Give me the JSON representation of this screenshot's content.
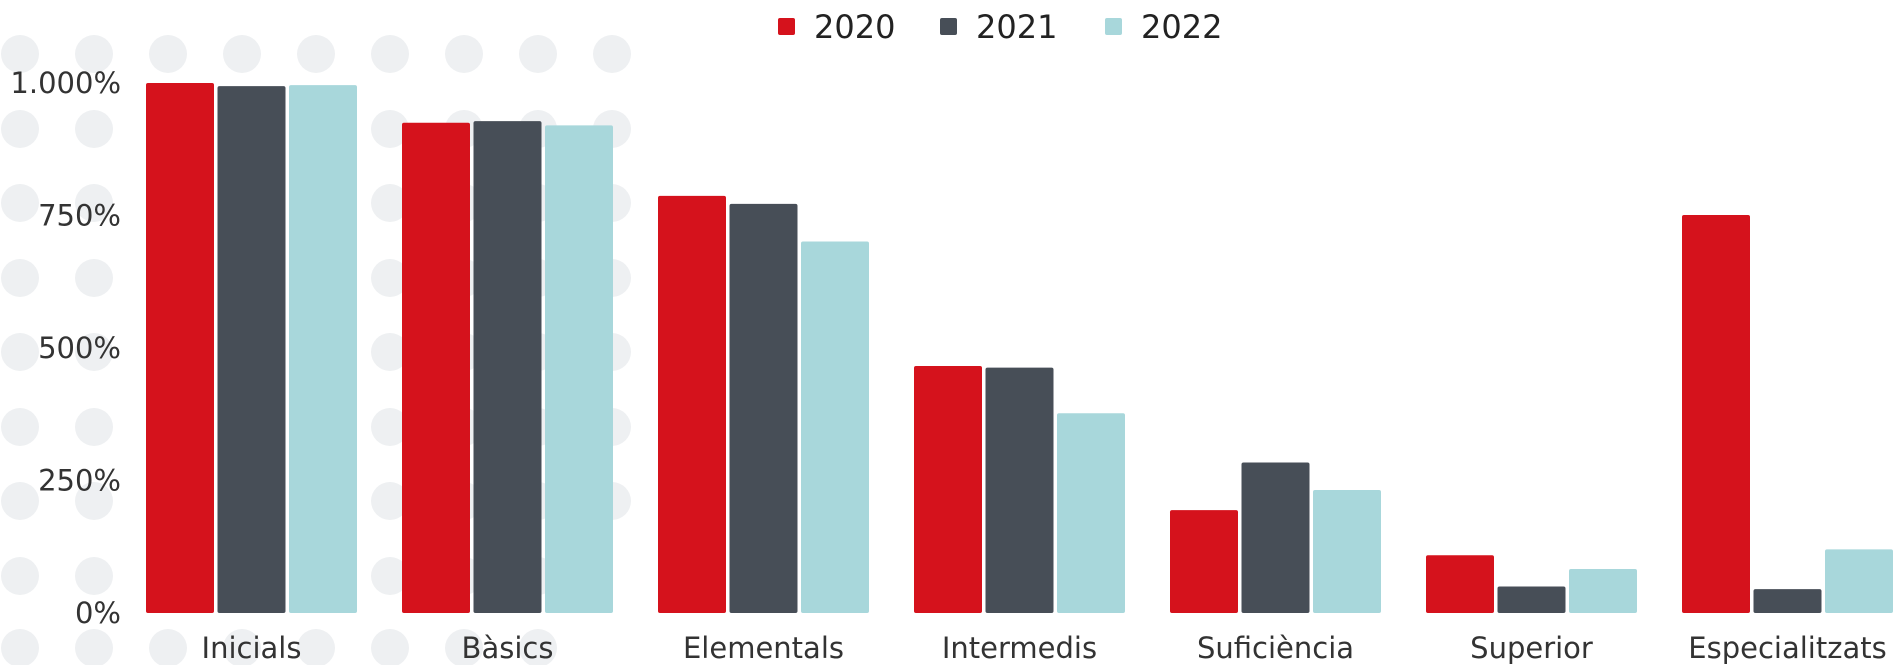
{
  "chart_data": {
    "type": "bar",
    "categories": [
      "Inicials",
      "Bàsics",
      "Elementals",
      "Intermedis",
      "Suficiència",
      "Superior",
      "Especialitzats"
    ],
    "series": [
      {
        "name": "2020",
        "color": "#d5121c",
        "values": [
          1000,
          925,
          787,
          466,
          194,
          109,
          751
        ]
      },
      {
        "name": "2021",
        "color": "#474e57",
        "values": [
          994,
          928,
          772,
          463,
          284,
          50,
          45
        ]
      },
      {
        "name": "2022",
        "color": "#a8d7db",
        "values": [
          996,
          920,
          701,
          377,
          232,
          83,
          120
        ]
      }
    ],
    "y_ticks": [
      {
        "value": 0,
        "label": "0%"
      },
      {
        "value": 250,
        "label": "250%"
      },
      {
        "value": 500,
        "label": "500%"
      },
      {
        "value": 750,
        "label": "750%"
      },
      {
        "value": 1000,
        "label": "1.000%"
      }
    ],
    "ylim": [
      0,
      1000
    ],
    "legend_position": "top-center",
    "grid": false,
    "background_pattern": "light-gray-dots"
  }
}
